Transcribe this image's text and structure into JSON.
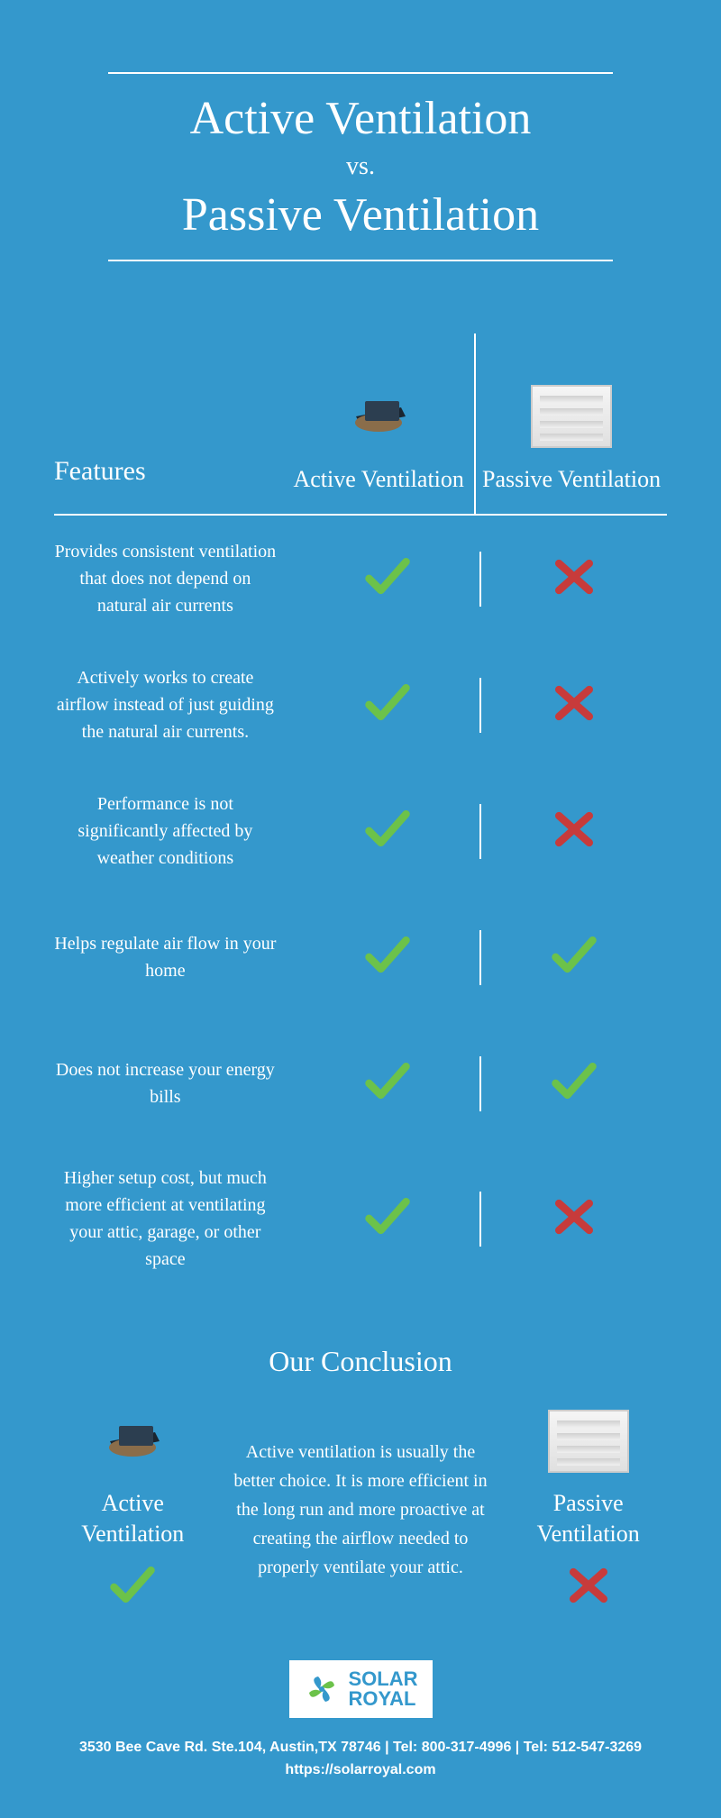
{
  "title": {
    "line1": "Active Ventilation",
    "vs": "vs.",
    "line2": "Passive Ventilation"
  },
  "columns": {
    "features": "Features",
    "active": "Active Ventilation",
    "passive": "Passive Ventilation"
  },
  "features": [
    {
      "text": "Provides consistent ventilation that does not depend on natural air currents",
      "active": true,
      "passive": false
    },
    {
      "text": "Actively works to create airflow instead of just guiding the natural air currents.",
      "active": true,
      "passive": false
    },
    {
      "text": "Performance is not significantly affected by weather conditions",
      "active": true,
      "passive": false
    },
    {
      "text": "Helps regulate air flow in your home",
      "active": true,
      "passive": true
    },
    {
      "text": "Does not increase your energy bills",
      "active": true,
      "passive": true
    },
    {
      "text": "Higher setup cost, but much more efficient at ventilating your attic, garage, or other space",
      "active": true,
      "passive": false
    }
  ],
  "conclusion": {
    "heading": "Our Conclusion",
    "text": "Active ventilation is usually the better choice. It is more efficient in the long run and more proactive at creating the airflow needed to properly ventilate your attic.",
    "active_label": "Active Ventilation",
    "passive_label": "Passive Ventilation",
    "active_result": true,
    "passive_result": false
  },
  "logo": {
    "line1": "SOLAR",
    "line2": "ROYAL"
  },
  "footer": {
    "line1": "3530 Bee Cave Rd. Ste.104, Austin,TX 78746 | Tel: 800-317-4996 | Tel: 512-547-3269",
    "line2": "https://solarroyal.com"
  },
  "colors": {
    "bg": "#3498cc",
    "check": "#6cc24a",
    "cross": "#c73b3b",
    "white": "#ffffff"
  }
}
